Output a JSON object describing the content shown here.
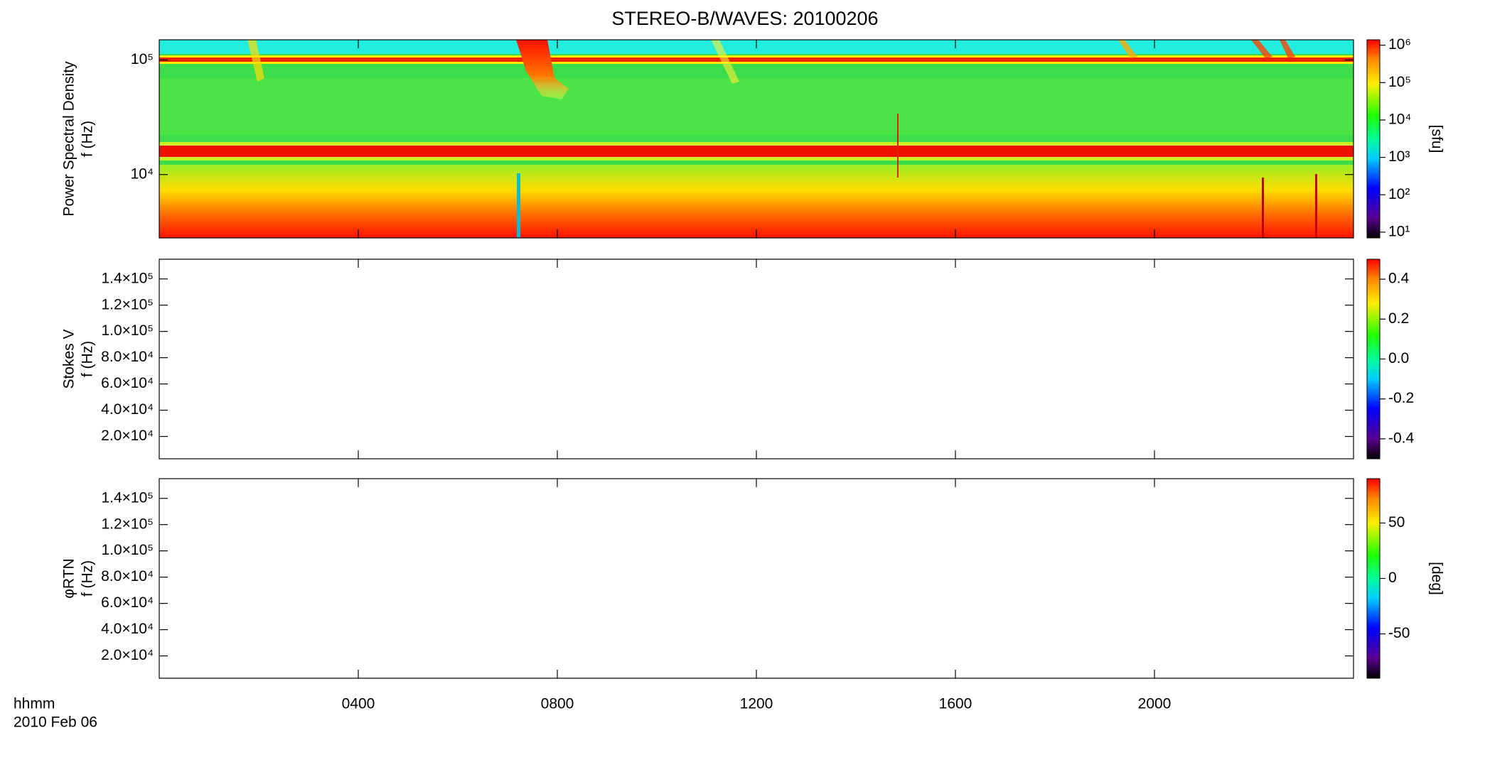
{
  "chart_data": [
    {
      "type": "spectrogram",
      "title": "STEREO-B/WAVES: 20100206",
      "ylabel": [
        "Power Spectral Density",
        "f (Hz)"
      ],
      "ylog": true,
      "ylim": [
        2800,
        150000
      ],
      "yticks": [
        {
          "value": 10000,
          "label": "10⁴"
        },
        {
          "value": 100000,
          "label": "10⁵"
        }
      ],
      "xlim": [
        0,
        24
      ],
      "xticks": [
        {
          "value": 4,
          "label": "0400"
        },
        {
          "value": 8,
          "label": "0800"
        },
        {
          "value": 12,
          "label": "1200"
        },
        {
          "value": 16,
          "label": "1600"
        },
        {
          "value": 20,
          "label": "2000"
        }
      ],
      "zlog": true,
      "zlim": [
        7,
        1400000
      ],
      "zticks": [
        {
          "value": 10,
          "label": "10¹"
        },
        {
          "value": 100,
          "label": "10²"
        },
        {
          "value": 1000,
          "label": "10³"
        },
        {
          "value": 10000,
          "label": "10⁴"
        },
        {
          "value": 100000,
          "label": "10⁵"
        },
        {
          "value": 1000000,
          "label": "10⁶"
        }
      ],
      "zlabel": "[sfu]"
    },
    {
      "type": "spectrogram",
      "ylabel": [
        "Stokes V",
        "f (Hz)"
      ],
      "ylog": false,
      "ylim": [
        3000,
        155000
      ],
      "yticks": [
        {
          "value": 20000,
          "label": "2.0×10⁴"
        },
        {
          "value": 40000,
          "label": "4.0×10⁴"
        },
        {
          "value": 60000,
          "label": "6.0×10⁴"
        },
        {
          "value": 80000,
          "label": "8.0×10⁴"
        },
        {
          "value": 100000,
          "label": "1.0×10⁵"
        },
        {
          "value": 120000,
          "label": "1.2×10⁵"
        },
        {
          "value": 140000,
          "label": "1.4×10⁵"
        }
      ],
      "xlim": [
        0,
        24
      ],
      "xticks": [
        4,
        8,
        12,
        16,
        20
      ],
      "zlog": false,
      "zlim": [
        -0.5,
        0.5
      ],
      "zticks": [
        -0.4,
        -0.2,
        {
          "value": 0,
          "label": "0.0"
        },
        0.2,
        0.4
      ]
    },
    {
      "type": "spectrogram",
      "ylabel": [
        "φRTN",
        "f (Hz)"
      ],
      "ylog": false,
      "ylim": [
        3000,
        155000
      ],
      "yticks": [
        {
          "value": 20000,
          "label": "2.0×10⁴"
        },
        {
          "value": 40000,
          "label": "4.0×10⁴"
        },
        {
          "value": 60000,
          "label": "6.0×10⁴"
        },
        {
          "value": 80000,
          "label": "8.0×10⁴"
        },
        {
          "value": 100000,
          "label": "1.0×10⁵"
        },
        {
          "value": 120000,
          "label": "1.2×10⁵"
        },
        {
          "value": 140000,
          "label": "1.4×10⁵"
        }
      ],
      "xlim": [
        0,
        24
      ],
      "xticks": [
        4,
        8,
        12,
        16,
        20
      ],
      "xlabel": [
        "hhmm",
        "2010 Feb 06"
      ],
      "zlog": false,
      "zlim": [
        -90,
        90
      ],
      "zticks": [
        -50,
        0,
        50
      ],
      "zlabel": "[deg]"
    }
  ]
}
